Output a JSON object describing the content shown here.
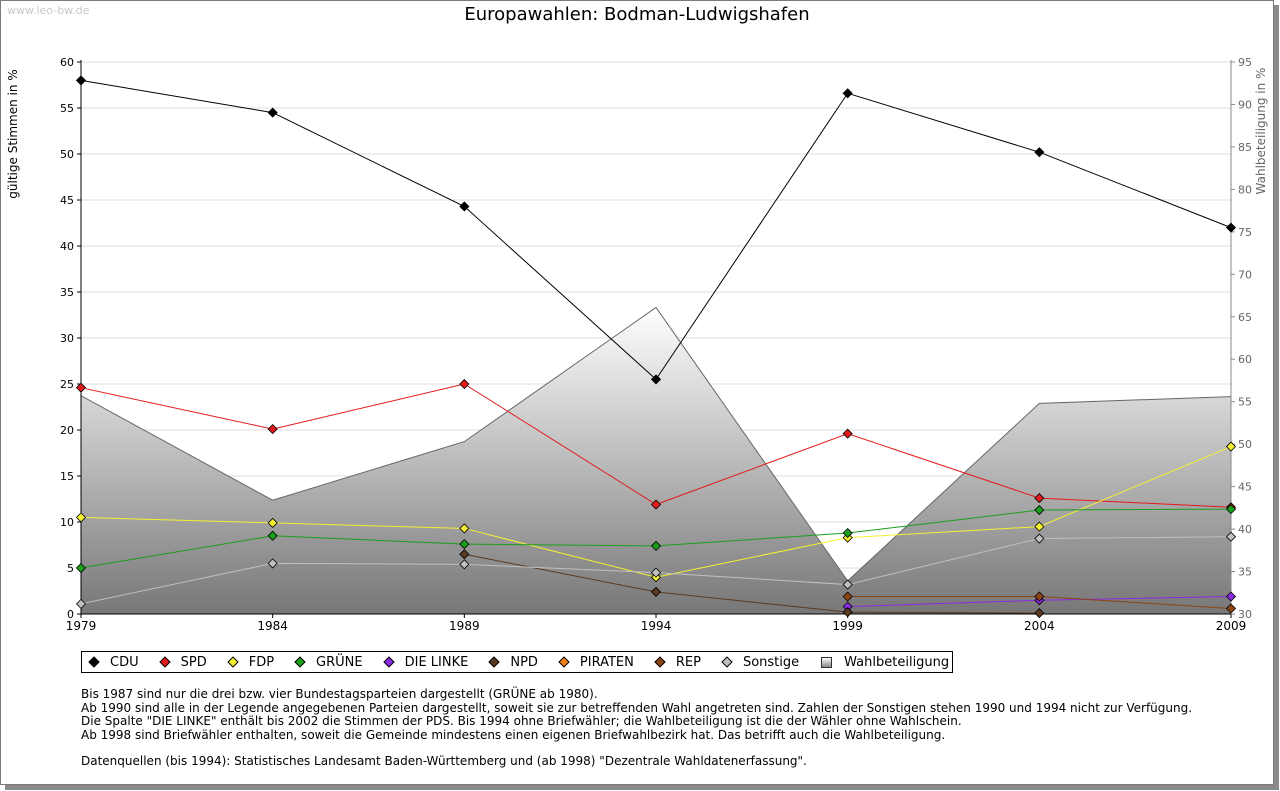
{
  "watermark": "www.leo-bw.de",
  "title": "Europawahlen: Bodman-Ludwigshafen",
  "chart_data": {
    "type": "line",
    "title": "Europawahlen: Bodman-Ludwigshafen",
    "x": [
      1979,
      1984,
      1989,
      1994,
      1999,
      2004,
      2009
    ],
    "xlabel": "",
    "ylabel": "gültige Stimmen in %",
    "y2label": "Wahlbeteiligung in %",
    "ylim": [
      0,
      60
    ],
    "y2lim": [
      30,
      95
    ],
    "yticks": [
      0,
      5,
      10,
      15,
      20,
      25,
      30,
      35,
      40,
      45,
      50,
      55,
      60
    ],
    "y2ticks": [
      30,
      35,
      40,
      45,
      50,
      55,
      60,
      65,
      70,
      75,
      80,
      85,
      90,
      95
    ],
    "grid": true,
    "legend_position": "bottom",
    "area": {
      "name": "Wahlbeteiligung",
      "values": [
        55.7,
        43.4,
        50.3,
        66.1,
        33.9,
        54.8,
        55.6
      ],
      "color": "#888888"
    },
    "series": [
      {
        "name": "CDU",
        "color": "#000000",
        "values": [
          58.0,
          54.5,
          44.3,
          25.5,
          56.6,
          50.2,
          42.0
        ]
      },
      {
        "name": "SPD",
        "color": "#e31a1c",
        "values": [
          24.6,
          20.1,
          25.0,
          11.9,
          19.6,
          12.6,
          11.6
        ]
      },
      {
        "name": "FDP",
        "color": "#f5f032",
        "values": [
          10.5,
          9.9,
          9.3,
          4.0,
          8.3,
          9.5,
          18.2
        ]
      },
      {
        "name": "GRÜNE",
        "color": "#1b9e1b",
        "values": [
          5.0,
          8.5,
          7.6,
          7.4,
          8.8,
          11.3,
          11.4
        ]
      },
      {
        "name": "DIE LINKE",
        "color": "#8a2be2",
        "values": [
          null,
          null,
          null,
          null,
          0.8,
          1.5,
          1.9
        ]
      },
      {
        "name": "NPD",
        "color": "#5a3a22",
        "values": [
          null,
          null,
          6.5,
          2.4,
          0.2,
          0.1,
          null
        ]
      },
      {
        "name": "PIRATEN",
        "color": "#f07f18",
        "values": [
          null,
          null,
          null,
          null,
          null,
          null,
          null
        ]
      },
      {
        "name": "REP",
        "color": "#8b4513",
        "values": [
          null,
          null,
          null,
          null,
          1.9,
          1.9,
          0.6
        ]
      },
      {
        "name": "Sonstige",
        "color": "#c0c0c0",
        "values": [
          1.1,
          5.5,
          5.4,
          4.5,
          3.2,
          8.2,
          8.4
        ]
      }
    ]
  },
  "legend": [
    {
      "label": "CDU",
      "color": "#000000",
      "shape": "diamond"
    },
    {
      "label": "SPD",
      "color": "#e31a1c",
      "shape": "diamond"
    },
    {
      "label": "FDP",
      "color": "#f5f032",
      "shape": "diamond"
    },
    {
      "label": "GRÜNE",
      "color": "#1b9e1b",
      "shape": "diamond"
    },
    {
      "label": "DIE LINKE",
      "color": "#8a2be2",
      "shape": "diamond"
    },
    {
      "label": "NPD",
      "color": "#5a3a22",
      "shape": "diamond"
    },
    {
      "label": "PIRATEN",
      "color": "#f07f18",
      "shape": "diamond"
    },
    {
      "label": "REP",
      "color": "#8b4513",
      "shape": "diamond"
    },
    {
      "label": "Sonstige",
      "color": "#c0c0c0",
      "shape": "diamond"
    },
    {
      "label": "Wahlbeteiligung",
      "color": "#888888",
      "shape": "square"
    }
  ],
  "notes": [
    "Bis 1987 sind nur die drei bzw. vier Bundestagsparteien dargestellt (GRÜNE ab 1980).",
    "Ab 1990 sind alle in der Legende angegebenen Parteien dargestellt, soweit sie zur betreffenden Wahl angetreten sind. Zahlen der Sonstigen stehen 1990 und 1994 nicht zur Verfügung.",
    "Die Spalte \"DIE LINKE\" enthält bis 2002 die Stimmen der PDS. Bis 1994 ohne Briefwähler; die Wahlbeteiligung ist die der Wähler ohne Wahlschein.",
    "Ab 1998 sind Briefwähler enthalten, soweit die Gemeinde mindestens einen eigenen Briefwahlbezirk hat. Das betrifft auch die Wahlbeteiligung."
  ],
  "sources": "Datenquellen (bis 1994): Statistisches Landesamt Baden-Württemberg und (ab 1998) \"Dezentrale Wahldatenerfassung\"."
}
